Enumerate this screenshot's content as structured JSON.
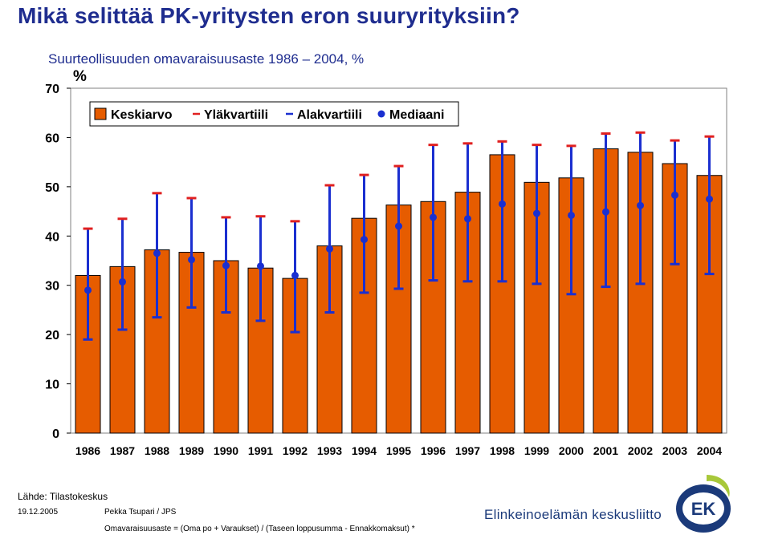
{
  "title": "Mikä selittää PK-yritysten eron suuryrityksiin?",
  "subtitle": "Suurteollisuuden omavaraisuusaste 1986 – 2004, %",
  "footer": {
    "source": "Lähde: Tilastokeskus",
    "date": "19.12.2005",
    "author": "Pekka Tsupari / JPS",
    "formula": "Omavaraisuusaste = (Oma po + Varaukset) / (Taseen loppusumma - Ennakkomaksut) *",
    "organization": "Elinkeinoelämän keskusliitto",
    "logo_text": "EK"
  },
  "colors": {
    "title": "#1f2d8f",
    "bar": "#e65c00",
    "bar_border": "#000000",
    "upper_quartile": "#e02020",
    "lower_quartile": "#1a2fd0",
    "median": "#1a2fd0",
    "plot_background": "#ffffff",
    "logo_outer": "#1b3a7a",
    "logo_accent": "#a8c83a"
  },
  "chart_data": {
    "type": "bar",
    "categories": [
      "1986",
      "1987",
      "1988",
      "1989",
      "1990",
      "1991",
      "1992",
      "1993",
      "1994",
      "1995",
      "1996",
      "1997",
      "1998",
      "1999",
      "2000",
      "2001",
      "2002",
      "2003",
      "2004"
    ],
    "ylabel": "%",
    "ylim": [
      0,
      70
    ],
    "yticks": [
      0,
      10,
      20,
      30,
      40,
      50,
      60,
      70
    ],
    "grid": false,
    "legend_position": "top-left",
    "series": [
      {
        "name": "Keskiarvo",
        "kind": "bar",
        "values": [
          32.0,
          33.8,
          37.2,
          36.7,
          35.0,
          33.5,
          31.4,
          38.0,
          43.6,
          46.3,
          47.0,
          48.9,
          56.5,
          50.9,
          51.8,
          57.7,
          57.0,
          54.7,
          52.3
        ]
      },
      {
        "name": "Yläkvartiili",
        "kind": "upper",
        "values": [
          41.5,
          43.5,
          48.7,
          47.7,
          43.8,
          44.0,
          43.0,
          50.3,
          52.4,
          54.2,
          58.5,
          58.8,
          59.2,
          58.5,
          58.3,
          60.8,
          61.0,
          59.4,
          60.2
        ]
      },
      {
        "name": "Alakvartiili",
        "kind": "lower",
        "values": [
          19.0,
          21.0,
          23.5,
          25.5,
          24.5,
          22.8,
          20.5,
          24.5,
          28.5,
          29.3,
          31.0,
          30.8,
          30.8,
          30.3,
          28.2,
          29.7,
          30.3,
          34.3,
          32.3
        ]
      },
      {
        "name": "Mediaani",
        "kind": "median",
        "values": [
          29.0,
          30.7,
          36.5,
          35.2,
          34.0,
          33.9,
          32.0,
          37.4,
          39.3,
          42.0,
          43.8,
          43.5,
          46.5,
          44.6,
          44.2,
          44.9,
          46.2,
          48.3,
          47.5
        ]
      }
    ]
  }
}
